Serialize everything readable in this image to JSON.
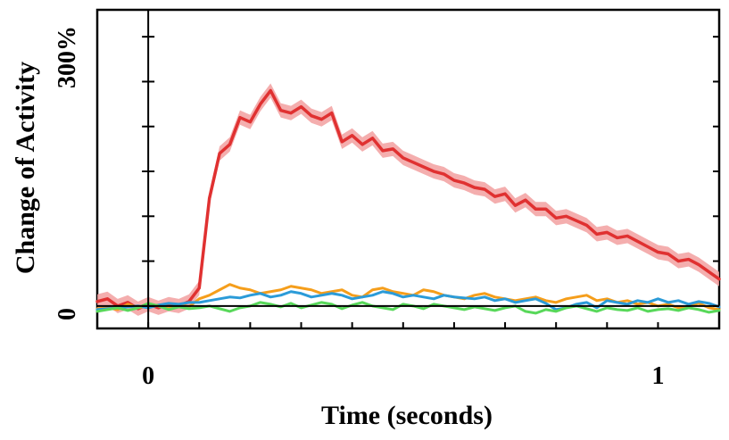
{
  "chart_data": {
    "type": "line",
    "title": "",
    "xlabel": "Time (seconds)",
    "ylabel": "Change of Activity",
    "xlim": [
      -0.1,
      1.12
    ],
    "ylim": [
      -25,
      330
    ],
    "x_ticks": [
      {
        "value": 0,
        "label": "0"
      },
      {
        "value": 1,
        "label": "1"
      }
    ],
    "y_ticks": [
      {
        "value": 0,
        "label": "0"
      },
      {
        "value": 300,
        "label": "300%"
      }
    ],
    "y_minor_ticks": [
      50,
      100,
      150,
      200,
      250
    ],
    "x_minor_ticks": [
      0.1,
      0.2,
      0.3,
      0.4,
      0.5,
      0.6,
      0.7,
      0.8,
      0.9,
      1.0
    ],
    "zero_line": true,
    "grid": false,
    "legend": "none",
    "series": [
      {
        "color": "#e03131",
        "band_color": "#f2a0a0",
        "band_halfwidth": 8,
        "x": [
          -0.1,
          -0.08,
          -0.06,
          -0.04,
          -0.02,
          0,
          0.02,
          0.04,
          0.06,
          0.08,
          0.1,
          0.12,
          0.14,
          0.16,
          0.18,
          0.2,
          0.22,
          0.24,
          0.26,
          0.28,
          0.3,
          0.32,
          0.34,
          0.36,
          0.38,
          0.4,
          0.42,
          0.44,
          0.46,
          0.48,
          0.5,
          0.52,
          0.54,
          0.56,
          0.58,
          0.6,
          0.62,
          0.64,
          0.66,
          0.68,
          0.7,
          0.72,
          0.74,
          0.76,
          0.78,
          0.8,
          0.82,
          0.84,
          0.86,
          0.88,
          0.9,
          0.92,
          0.94,
          0.96,
          0.98,
          1.0,
          1.02,
          1.04,
          1.06,
          1.08,
          1.1,
          1.12
        ],
        "y": [
          5,
          8,
          0,
          4,
          -3,
          2,
          -2,
          2,
          0,
          5,
          20,
          120,
          170,
          180,
          210,
          205,
          225,
          240,
          218,
          215,
          222,
          212,
          208,
          215,
          183,
          190,
          180,
          187,
          173,
          175,
          165,
          160,
          155,
          150,
          147,
          140,
          137,
          132,
          130,
          122,
          125,
          112,
          118,
          108,
          108,
          98,
          100,
          95,
          90,
          80,
          82,
          76,
          78,
          72,
          66,
          60,
          58,
          50,
          52,
          46,
          38,
          30
        ]
      },
      {
        "color": "#f59e1b",
        "x": [
          -0.1,
          -0.08,
          -0.06,
          -0.04,
          -0.02,
          0,
          0.02,
          0.04,
          0.06,
          0.08,
          0.1,
          0.12,
          0.14,
          0.16,
          0.18,
          0.2,
          0.22,
          0.24,
          0.26,
          0.28,
          0.3,
          0.32,
          0.34,
          0.36,
          0.38,
          0.4,
          0.42,
          0.44,
          0.46,
          0.48,
          0.5,
          0.52,
          0.54,
          0.56,
          0.58,
          0.6,
          0.62,
          0.64,
          0.66,
          0.68,
          0.7,
          0.72,
          0.74,
          0.76,
          0.78,
          0.8,
          0.82,
          0.84,
          0.86,
          0.88,
          0.9,
          0.92,
          0.94,
          0.96,
          0.98,
          1.0,
          1.02,
          1.04,
          1.06,
          1.08,
          1.1,
          1.12
        ],
        "y": [
          -3,
          -2,
          -4,
          2,
          -2,
          0,
          1,
          -3,
          2,
          -1,
          8,
          12,
          18,
          24,
          20,
          18,
          14,
          16,
          18,
          22,
          20,
          18,
          14,
          16,
          18,
          12,
          10,
          18,
          20,
          16,
          14,
          12,
          18,
          16,
          12,
          10,
          8,
          12,
          14,
          10,
          8,
          6,
          8,
          10,
          6,
          4,
          8,
          10,
          12,
          6,
          8,
          4,
          6,
          2,
          4,
          0,
          2,
          -2,
          0,
          3,
          -2,
          -4
        ]
      },
      {
        "color": "#2b9bd8",
        "x": [
          -0.1,
          -0.08,
          -0.06,
          -0.04,
          -0.02,
          0,
          0.02,
          0.04,
          0.06,
          0.08,
          0.1,
          0.12,
          0.14,
          0.16,
          0.18,
          0.2,
          0.22,
          0.24,
          0.26,
          0.28,
          0.3,
          0.32,
          0.34,
          0.36,
          0.38,
          0.4,
          0.42,
          0.44,
          0.46,
          0.48,
          0.5,
          0.52,
          0.54,
          0.56,
          0.58,
          0.6,
          0.62,
          0.64,
          0.66,
          0.68,
          0.7,
          0.72,
          0.74,
          0.76,
          0.78,
          0.8,
          0.82,
          0.84,
          0.86,
          0.88,
          0.9,
          0.92,
          0.94,
          0.96,
          0.98,
          1.0,
          1.02,
          1.04,
          1.06,
          1.08,
          1.1,
          1.12
        ],
        "y": [
          -4,
          -3,
          -2,
          -1,
          0,
          -2,
          1,
          3,
          2,
          4,
          4,
          6,
          8,
          10,
          9,
          12,
          14,
          10,
          12,
          16,
          14,
          10,
          12,
          14,
          12,
          8,
          10,
          12,
          16,
          14,
          10,
          12,
          10,
          8,
          12,
          10,
          9,
          8,
          10,
          6,
          8,
          4,
          6,
          8,
          3,
          -4,
          -2,
          2,
          4,
          -2,
          6,
          4,
          2,
          6,
          4,
          8,
          4,
          6,
          2,
          5,
          3,
          -1
        ]
      },
      {
        "color": "#58d85a",
        "x": [
          -0.1,
          -0.08,
          -0.06,
          -0.04,
          -0.02,
          0,
          0.02,
          0.04,
          0.06,
          0.08,
          0.1,
          0.12,
          0.14,
          0.16,
          0.18,
          0.2,
          0.22,
          0.24,
          0.26,
          0.28,
          0.3,
          0.32,
          0.34,
          0.36,
          0.38,
          0.4,
          0.42,
          0.44,
          0.46,
          0.48,
          0.5,
          0.52,
          0.54,
          0.56,
          0.58,
          0.6,
          0.62,
          0.64,
          0.66,
          0.68,
          0.7,
          0.72,
          0.74,
          0.76,
          0.78,
          0.8,
          0.82,
          0.84,
          0.86,
          0.88,
          0.9,
          0.92,
          0.94,
          0.96,
          0.98,
          1.0,
          1.02,
          1.04,
          1.06,
          1.08,
          1.1,
          1.12
        ],
        "y": [
          -6,
          -4,
          -2,
          -5,
          -2,
          3,
          0,
          -4,
          -1,
          -3,
          -2,
          0,
          -3,
          -6,
          -2,
          0,
          4,
          2,
          -1,
          3,
          -2,
          1,
          4,
          2,
          -3,
          1,
          4,
          0,
          -2,
          -4,
          2,
          0,
          -3,
          2,
          0,
          -2,
          -4,
          -1,
          -3,
          -5,
          -2,
          0,
          -6,
          -8,
          -4,
          -6,
          -2,
          0,
          -3,
          -6,
          -2,
          -4,
          -5,
          -2,
          -6,
          -4,
          -3,
          -5,
          -2,
          -4,
          -7,
          -5
        ]
      }
    ]
  }
}
